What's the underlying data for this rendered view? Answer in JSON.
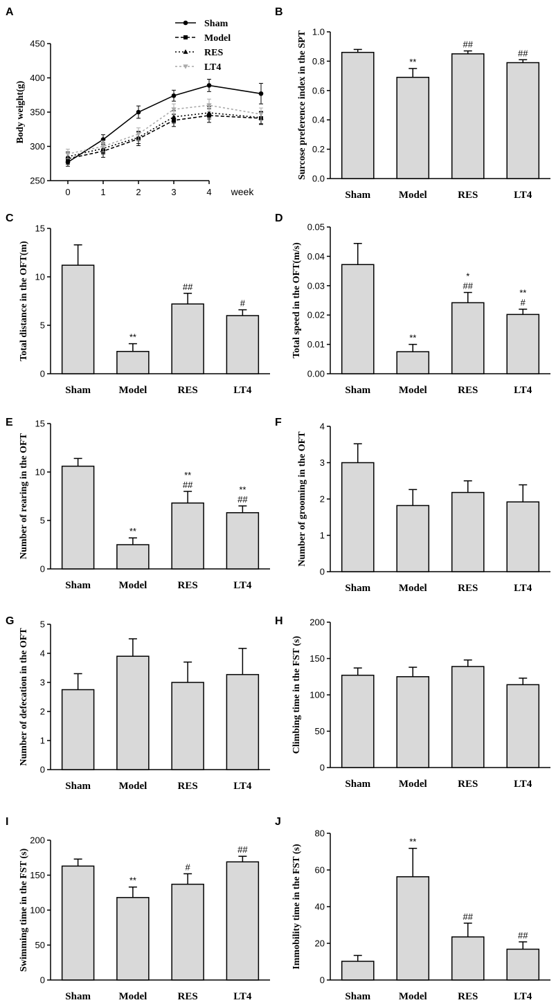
{
  "figure": {
    "background": "#ffffff",
    "bar_fill": "#d9d9d9",
    "ink": "#000000"
  },
  "chart_data": [
    {
      "id": "A",
      "type": "line",
      "ylabel": "Body weight(g)",
      "xlabel": "week",
      "x": [
        0,
        1,
        2,
        3,
        4
      ],
      "xticks": [
        "0",
        "1",
        "2",
        "3",
        "4"
      ],
      "ylim": [
        250,
        450
      ],
      "yticks": [
        "250",
        "300",
        "350",
        "400",
        "450"
      ],
      "series": [
        {
          "name": "Sham",
          "values": [
            277,
            310,
            350,
            374,
            389
          ],
          "err": [
            6,
            7,
            9,
            8,
            9
          ],
          "color": "#000000",
          "dash": "",
          "marker": "circle"
        },
        {
          "name": "Model",
          "values": [
            282,
            293,
            311,
            338,
            345
          ],
          "err": [
            8,
            9,
            10,
            9,
            10
          ],
          "color": "#000000",
          "dash": "5,3",
          "marker": "square"
        },
        {
          "name": "RES",
          "values": [
            285,
            297,
            313,
            343,
            349
          ],
          "err": [
            7,
            8,
            9,
            9,
            9
          ],
          "color": "#000000",
          "dash": "2,3",
          "marker": "triangle"
        },
        {
          "name": "LT4",
          "values": [
            289,
            300,
            318,
            354,
            360
          ],
          "err": [
            7,
            8,
            9,
            8,
            9
          ],
          "color": "#aaaaaa",
          "dash": "3,3",
          "marker": "triangle-down"
        }
      ],
      "last_point": {
        "x_label": "",
        "values": [
          377,
          341,
          342,
          347
        ],
        "err": [
          15,
          9,
          9,
          9
        ]
      }
    },
    {
      "id": "B",
      "type": "bar",
      "ylabel": "Surcose preference index in the SPT",
      "categories": [
        "Sham",
        "Model",
        "RES",
        "LT4"
      ],
      "values": [
        0.86,
        0.69,
        0.85,
        0.79
      ],
      "err": [
        0.02,
        0.06,
        0.02,
        0.02
      ],
      "ylim": [
        0,
        1.0
      ],
      "yticks": [
        "0.0",
        "0.2",
        "0.4",
        "0.6",
        "0.8",
        "1.0"
      ],
      "annotations": [
        [],
        [
          "**"
        ],
        [
          "##"
        ],
        [
          "##"
        ]
      ]
    },
    {
      "id": "C",
      "type": "bar",
      "ylabel": "Total distance in the OFT(m)",
      "categories": [
        "Sham",
        "Model",
        "RES",
        "LT4"
      ],
      "values": [
        11.2,
        2.3,
        7.2,
        6.0
      ],
      "err": [
        2.1,
        0.8,
        1.1,
        0.6
      ],
      "ylim": [
        0,
        15
      ],
      "yticks": [
        "0",
        "5",
        "10",
        "15"
      ],
      "annotations": [
        [],
        [
          "**"
        ],
        [
          "##"
        ],
        [
          "#"
        ]
      ]
    },
    {
      "id": "D",
      "type": "bar",
      "ylabel": "Total speed in the OFT(m/s)",
      "categories": [
        "Sham",
        "Model",
        "RES",
        "LT4"
      ],
      "values": [
        0.0372,
        0.0075,
        0.0242,
        0.0202
      ],
      "err": [
        0.0072,
        0.0025,
        0.0035,
        0.0018
      ],
      "ylim": [
        0,
        0.05
      ],
      "yticks": [
        "0.00",
        "0.01",
        "0.02",
        "0.03",
        "0.04",
        "0.05"
      ],
      "annotations": [
        [],
        [
          "**"
        ],
        [
          "*",
          "##"
        ],
        [
          "**",
          "#"
        ]
      ]
    },
    {
      "id": "E",
      "type": "bar",
      "ylabel": "Number of rearing in the OFT",
      "categories": [
        "Sham",
        "Model",
        "RES",
        "LT4"
      ],
      "values": [
        10.6,
        2.5,
        6.8,
        5.8
      ],
      "err": [
        0.8,
        0.7,
        1.2,
        0.7
      ],
      "ylim": [
        0,
        15
      ],
      "yticks": [
        "0",
        "5",
        "10",
        "15"
      ],
      "annotations": [
        [],
        [
          "**"
        ],
        [
          "**",
          "##"
        ],
        [
          "**",
          "##"
        ]
      ]
    },
    {
      "id": "F",
      "type": "bar",
      "ylabel": "Number of grooming in the OFT",
      "categories": [
        "Sham",
        "Model",
        "RES",
        "LT4"
      ],
      "values": [
        3.0,
        1.82,
        2.18,
        1.92
      ],
      "err": [
        0.52,
        0.44,
        0.32,
        0.47
      ],
      "ylim": [
        0,
        4
      ],
      "yticks": [
        "0",
        "1",
        "2",
        "3",
        "4"
      ],
      "annotations": [
        [],
        [],
        [],
        []
      ]
    },
    {
      "id": "G",
      "type": "bar",
      "ylabel": "Number of defecation in the OFT",
      "categories": [
        "Sham",
        "Model",
        "RES",
        "LT4"
      ],
      "values": [
        2.75,
        3.9,
        3.0,
        3.27
      ],
      "err": [
        0.55,
        0.6,
        0.7,
        0.9
      ],
      "ylim": [
        0,
        5
      ],
      "yticks": [
        "0",
        "1",
        "2",
        "3",
        "4",
        "5"
      ],
      "annotations": [
        [],
        [],
        [],
        []
      ]
    },
    {
      "id": "H",
      "type": "bar",
      "ylabel": "Climbing time in the FST (s)",
      "categories": [
        "Sham",
        "Model",
        "RES",
        "LT4"
      ],
      "values": [
        127,
        125,
        139,
        114
      ],
      "err": [
        10,
        13,
        9,
        9
      ],
      "ylim": [
        0,
        200
      ],
      "yticks": [
        "0",
        "50",
        "100",
        "150",
        "200"
      ],
      "annotations": [
        [],
        [],
        [],
        []
      ]
    },
    {
      "id": "I",
      "type": "bar",
      "ylabel": "Swimming time in the FST (s)",
      "categories": [
        "Sham",
        "Model",
        "RES",
        "LT4"
      ],
      "values": [
        163,
        118,
        137,
        169
      ],
      "err": [
        10,
        15,
        15,
        8
      ],
      "ylim": [
        0,
        200
      ],
      "yticks": [
        "0",
        "50",
        "100",
        "150",
        "200"
      ],
      "annotations": [
        [],
        [
          "**"
        ],
        [
          "#"
        ],
        [
          "##"
        ]
      ]
    },
    {
      "id": "J",
      "type": "bar",
      "ylabel": "Immobility time in the FST (s)",
      "categories": [
        "Sham",
        "Model",
        "RES",
        "LT4"
      ],
      "values": [
        10.2,
        56.3,
        23.5,
        16.8
      ],
      "err": [
        3.2,
        15.5,
        7.5,
        4.0
      ],
      "ylim": [
        0,
        80
      ],
      "yticks": [
        "0",
        "20",
        "40",
        "60",
        "80"
      ],
      "annotations": [
        [],
        [
          "**"
        ],
        [
          "##"
        ],
        [
          "##"
        ]
      ]
    }
  ]
}
